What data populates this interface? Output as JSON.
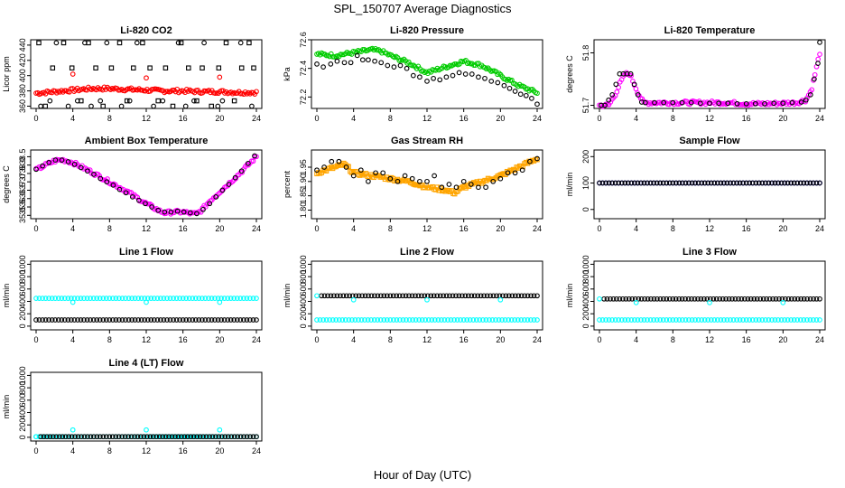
{
  "page": {
    "title": "SPL_150707  Average Diagnostics",
    "xlabel": "Hour of Day (UTC)"
  },
  "colors": {
    "black": "#000000",
    "red": "#ff0000",
    "green": "#00cc00",
    "magenta": "#ff00ff",
    "orange": "#ffa500",
    "blue": "#0000ff",
    "cyan": "#00ffff"
  },
  "chart_data": [
    {
      "id": "co2",
      "type": "scatter",
      "title": "Li-820 CO2",
      "ylabel": "Licor ppm",
      "xlim": [
        0,
        24
      ],
      "xticks": [
        0,
        4,
        8,
        12,
        16,
        20,
        24
      ],
      "ylim": [
        357,
        447
      ],
      "yticks": [
        360,
        380,
        400,
        420,
        440
      ],
      "series": [
        {
          "color": "#000000",
          "marker": "circle",
          "x": [
            0.5,
            1.5,
            2.2,
            3.5,
            4.5,
            5.3,
            6.0,
            7.0,
            7.7,
            9.3,
            10.2,
            11.0,
            12.8,
            13.8,
            15.5,
            16.3,
            17.2,
            18.3,
            19.8,
            20.3,
            22.3,
            23.5
          ],
          "y": [
            360,
            367,
            443,
            360,
            367,
            443,
            360,
            367,
            443,
            360,
            367,
            443,
            360,
            367,
            443,
            360,
            367,
            443,
            360,
            367,
            443,
            360
          ]
        },
        {
          "color": "#000000",
          "marker": "square",
          "x": [
            0.3,
            1.0,
            1.8,
            3.0,
            3.9,
            4.9,
            5.7,
            6.5,
            7.3,
            8.2,
            9.1,
            9.9,
            10.6,
            11.6,
            12.4,
            13.3,
            14.1,
            14.9,
            15.8,
            16.6,
            17.5,
            18.1,
            19.1,
            19.9,
            20.7,
            21.6,
            22.4,
            23.2,
            23.7
          ],
          "y": [
            443,
            360,
            410,
            443,
            410,
            367,
            443,
            410,
            360,
            410,
            443,
            367,
            410,
            443,
            410,
            367,
            410,
            360,
            443,
            410,
            367,
            410,
            360,
            410,
            443,
            367,
            410,
            443,
            410
          ]
        },
        {
          "color": "#ff0000",
          "marker": "circle",
          "cloud": true,
          "x": [
            0,
            2,
            4,
            6,
            8,
            10,
            12,
            14,
            16,
            18,
            20,
            22,
            24
          ],
          "y": [
            377,
            379,
            381,
            383,
            383,
            382,
            381,
            380,
            380,
            379,
            379,
            378,
            378
          ]
        },
        {
          "color": "#ff0000",
          "marker": "circle",
          "x": [
            4.0,
            12.0,
            20.0
          ],
          "y": [
            402,
            397,
            398
          ]
        }
      ]
    },
    {
      "id": "pressure",
      "type": "scatter",
      "title": "Li-820 Pressure",
      "ylabel": "kPa",
      "xlim": [
        0,
        24
      ],
      "xticks": [
        0,
        4,
        8,
        12,
        16,
        20,
        24
      ],
      "ylim": [
        72.12,
        72.6
      ],
      "yticks": [
        72.2,
        72.4,
        72.6
      ],
      "series": [
        {
          "color": "#00cc00",
          "marker": "circle",
          "cloud": true,
          "x": [
            0,
            2,
            4,
            6,
            7,
            8,
            10,
            12,
            14,
            16,
            18,
            20,
            22,
            24
          ],
          "y": [
            72.5,
            72.49,
            72.51,
            72.53,
            72.52,
            72.49,
            72.44,
            72.37,
            72.41,
            72.45,
            72.42,
            72.35,
            72.28,
            72.23
          ]
        },
        {
          "color": "#000000",
          "marker": "circle",
          "x": [
            0,
            0.7,
            1.5,
            2.2,
            3.0,
            3.7,
            4.4,
            5.0,
            5.6,
            6.3,
            7.0,
            7.7,
            8.4,
            9.1,
            9.8,
            10.5,
            11.2,
            12.0,
            12.7,
            13.4,
            14.1,
            14.8,
            15.5,
            16.2,
            16.9,
            17.6,
            18.3,
            19.0,
            19.7,
            20.4,
            21.0,
            21.6,
            22.2,
            22.8,
            23.4,
            24.0
          ],
          "y": [
            72.43,
            72.41,
            72.43,
            72.45,
            72.44,
            72.44,
            72.49,
            72.46,
            72.46,
            72.45,
            72.44,
            72.42,
            72.41,
            72.42,
            72.4,
            72.35,
            72.34,
            72.31,
            72.33,
            72.32,
            72.34,
            72.35,
            72.37,
            72.36,
            72.36,
            72.34,
            72.33,
            72.31,
            72.3,
            72.28,
            72.26,
            72.24,
            72.22,
            72.21,
            72.19,
            72.15
          ]
        }
      ]
    },
    {
      "id": "li820temp",
      "type": "scatter",
      "title": "Li-820 Temperature",
      "ylabel": "degrees C",
      "xlim": [
        0,
        24
      ],
      "xticks": [
        0,
        4,
        8,
        12,
        16,
        20,
        24
      ],
      "ylim": [
        51.694,
        51.825
      ],
      "yticks": [
        51.7,
        51.8
      ],
      "series": [
        {
          "color": "#ff00ff",
          "marker": "circle",
          "cloud": true,
          "x": [
            0,
            1.0,
            1.7,
            2.2,
            2.8,
            3.3,
            3.8,
            4.3,
            4.8,
            6,
            10,
            14,
            16,
            18,
            20,
            21.5,
            22.5,
            23.1,
            23.5,
            24
          ],
          "y": [
            51.7,
            51.7,
            51.72,
            51.74,
            51.76,
            51.76,
            51.74,
            51.72,
            51.705,
            51.705,
            51.705,
            51.705,
            51.703,
            51.703,
            51.704,
            51.705,
            51.71,
            51.73,
            51.76,
            51.8
          ]
        },
        {
          "color": "#000000",
          "marker": "circle",
          "x": [
            0.2,
            0.6,
            1.0,
            1.4,
            1.8,
            2.2,
            2.6,
            3.0,
            3.4,
            3.8,
            4.2,
            4.6,
            5,
            6,
            7,
            8,
            9,
            10,
            11,
            12,
            13,
            14,
            15,
            16,
            17,
            18,
            19,
            20,
            21,
            22,
            22.5,
            23,
            23.4,
            23.8,
            24
          ],
          "y": [
            51.7,
            51.7,
            51.71,
            51.72,
            51.74,
            51.76,
            51.76,
            51.76,
            51.76,
            51.74,
            51.72,
            51.706,
            51.705,
            51.705,
            51.705,
            51.705,
            51.705,
            51.705,
            51.704,
            51.704,
            51.704,
            51.704,
            51.703,
            51.703,
            51.703,
            51.703,
            51.704,
            51.704,
            51.705,
            51.706,
            51.71,
            51.72,
            51.75,
            51.78,
            51.82
          ]
        }
      ]
    },
    {
      "id": "boxtemp",
      "type": "scatter",
      "title": "Ambient Box Temperature",
      "ylabel": "degrees C",
      "xlim": [
        0,
        24
      ],
      "xticks": [
        0,
        4,
        8,
        12,
        16,
        20,
        24
      ],
      "ylim": [
        34.8,
        38.9
      ],
      "yticks": [
        35.0,
        35.5,
        36.0,
        36.5,
        37.0,
        37.5,
        38.0,
        38.5
      ],
      "series": [
        {
          "color": "#ff00ff",
          "marker": "circle",
          "cloud": true,
          "x": [
            0,
            1,
            2,
            2.5,
            3,
            4,
            6,
            8,
            10,
            12,
            13.5,
            14,
            15,
            16,
            17,
            17.5,
            18,
            19,
            20,
            22,
            24
          ],
          "y": [
            37.7,
            38.0,
            38.25,
            38.3,
            38.3,
            38.15,
            37.6,
            37.0,
            36.4,
            35.7,
            35.25,
            35.15,
            35.2,
            35.2,
            35.1,
            35.1,
            35.3,
            35.9,
            36.4,
            37.4,
            38.5
          ]
        },
        {
          "color": "#000000",
          "marker": "circle",
          "x": [
            0,
            0.7,
            1.4,
            2.1,
            2.8,
            3.5,
            4.2,
            4.9,
            5.6,
            6.3,
            7.0,
            7.7,
            8.4,
            9.1,
            9.8,
            10.5,
            11.2,
            11.9,
            12.6,
            13.3,
            14.0,
            14.7,
            15.4,
            16.1,
            16.8,
            17.5,
            18.2,
            18.9,
            19.6,
            20.3,
            21.0,
            21.7,
            22.4,
            23.1,
            23.8
          ],
          "y": [
            37.75,
            37.95,
            38.15,
            38.3,
            38.3,
            38.2,
            38.05,
            37.85,
            37.65,
            37.45,
            37.2,
            37.0,
            36.8,
            36.55,
            36.35,
            36.1,
            35.9,
            35.7,
            35.5,
            35.3,
            35.2,
            35.2,
            35.25,
            35.2,
            35.15,
            35.1,
            35.35,
            35.7,
            36.1,
            36.5,
            36.85,
            37.25,
            37.65,
            38.1,
            38.55
          ]
        }
      ]
    },
    {
      "id": "rh",
      "type": "scatter",
      "title": "Gas Stream RH",
      "ylabel": "percent",
      "xlim": [
        0,
        24
      ],
      "xticks": [
        0,
        4,
        8,
        12,
        16,
        20,
        24
      ],
      "ylim": [
        1.77,
        2.01
      ],
      "yticks": [
        1.8,
        1.85,
        1.9,
        1.95
      ],
      "series": [
        {
          "color": "#ffa500",
          "marker": "square",
          "cloud": true,
          "x": [
            0,
            2,
            3,
            4,
            6,
            8,
            10,
            12,
            14,
            15,
            16,
            18,
            20,
            22,
            24
          ],
          "y": [
            1.93,
            1.95,
            1.96,
            1.93,
            1.92,
            1.91,
            1.9,
            1.88,
            1.87,
            1.86,
            1.88,
            1.9,
            1.92,
            1.95,
            1.98
          ]
        },
        {
          "color": "#000000",
          "marker": "circle",
          "x": [
            0,
            0.8,
            1.6,
            2.4,
            3.2,
            4.0,
            4.8,
            5.6,
            6.4,
            7.2,
            8.0,
            8.8,
            9.6,
            10.4,
            11.2,
            12.0,
            12.8,
            13.6,
            14.4,
            15.2,
            16.0,
            16.8,
            17.6,
            18.4,
            19.2,
            20.0,
            20.8,
            21.6,
            22.4,
            23.2,
            24.0
          ],
          "y": [
            1.94,
            1.95,
            1.97,
            1.97,
            1.95,
            1.92,
            1.94,
            1.9,
            1.93,
            1.93,
            1.91,
            1.9,
            1.92,
            1.91,
            1.9,
            1.9,
            1.92,
            1.88,
            1.89,
            1.88,
            1.9,
            1.89,
            1.88,
            1.88,
            1.9,
            1.91,
            1.93,
            1.93,
            1.94,
            1.97,
            1.98
          ]
        }
      ]
    },
    {
      "id": "sampleflow",
      "type": "scatter",
      "title": "Sample Flow",
      "ylabel": "ml/min",
      "xlim": [
        0,
        24
      ],
      "xticks": [
        0,
        4,
        8,
        12,
        16,
        20,
        24
      ],
      "ylim": [
        -35,
        225
      ],
      "yticks": [
        0,
        100,
        200
      ],
      "series": [
        {
          "color": "#0000ff",
          "marker": "circle",
          "dense": true,
          "x": [
            0,
            24
          ],
          "y": [
            100,
            100
          ]
        },
        {
          "color": "#000000",
          "marker": "circle",
          "dense": true,
          "x": [
            0,
            24
          ],
          "y": [
            100,
            100
          ]
        }
      ]
    },
    {
      "id": "line1",
      "type": "scatter",
      "title": "Line 1 Flow",
      "ylabel": "ml/min",
      "xlim": [
        0,
        24
      ],
      "xticks": [
        0,
        4,
        8,
        12,
        16,
        20,
        24
      ],
      "ylim": [
        -60,
        1050
      ],
      "yticks": [
        0,
        200,
        400,
        600,
        800,
        1000
      ],
      "series": [
        {
          "color": "#00ffff",
          "marker": "circle",
          "dense": true,
          "x": [
            0,
            24
          ],
          "y": [
            450,
            450
          ]
        },
        {
          "color": "#000000",
          "marker": "circle",
          "dense": true,
          "x": [
            0,
            24
          ],
          "y": [
            100,
            100
          ]
        },
        {
          "color": "#00ffff",
          "marker": "circle",
          "x": [
            4,
            12,
            20
          ],
          "y": [
            385,
            385,
            385
          ]
        }
      ]
    },
    {
      "id": "line2",
      "type": "scatter",
      "title": "Line 2 Flow",
      "ylabel": "ml/min",
      "xlim": [
        0,
        24
      ],
      "xticks": [
        0,
        4,
        8,
        12,
        16,
        20,
        24
      ],
      "ylim": [
        -60,
        1050
      ],
      "yticks": [
        0,
        200,
        400,
        600,
        800,
        1000
      ],
      "series": [
        {
          "color": "#00ffff",
          "marker": "circle",
          "dense": true,
          "x": [
            0,
            24
          ],
          "y": [
            100,
            100
          ]
        },
        {
          "color": "#000000",
          "marker": "circle",
          "dense": true,
          "x": [
            0.5,
            24
          ],
          "y": [
            490,
            490
          ]
        },
        {
          "color": "#00ffff",
          "marker": "circle",
          "x": [
            0,
            4,
            12,
            20
          ],
          "y": [
            490,
            425,
            425,
            425
          ]
        }
      ]
    },
    {
      "id": "line3",
      "type": "scatter",
      "title": "Line 3 Flow",
      "ylabel": "ml/min",
      "xlim": [
        0,
        24
      ],
      "xticks": [
        0,
        4,
        8,
        12,
        16,
        20,
        24
      ],
      "ylim": [
        -60,
        1050
      ],
      "yticks": [
        0,
        200,
        400,
        600,
        800,
        1000
      ],
      "series": [
        {
          "color": "#00ffff",
          "marker": "circle",
          "dense": true,
          "x": [
            0,
            24
          ],
          "y": [
            100,
            100
          ]
        },
        {
          "color": "#000000",
          "marker": "circle",
          "dense": true,
          "x": [
            0.5,
            24
          ],
          "y": [
            440,
            440
          ]
        },
        {
          "color": "#00ffff",
          "marker": "circle",
          "x": [
            0,
            4,
            12,
            20
          ],
          "y": [
            440,
            380,
            380,
            380
          ]
        }
      ]
    },
    {
      "id": "line4",
      "type": "scatter",
      "title": "Line 4 (LT) Flow",
      "ylabel": "ml/min",
      "xlim": [
        0,
        24
      ],
      "xticks": [
        0,
        4,
        8,
        12,
        16,
        20,
        24
      ],
      "ylim": [
        -60,
        1050
      ],
      "yticks": [
        0,
        200,
        400,
        600,
        800,
        1000
      ],
      "series": [
        {
          "color": "#00ffff",
          "marker": "circle",
          "dense": true,
          "x": [
            0,
            24
          ],
          "y": [
            10,
            10
          ]
        },
        {
          "color": "#000000",
          "marker": "circle",
          "dense": true,
          "x": [
            0.5,
            24
          ],
          "y": [
            10,
            10
          ]
        },
        {
          "color": "#00ffff",
          "marker": "circle",
          "x": [
            0,
            4,
            12,
            20
          ],
          "y": [
            10,
            120,
            120,
            120
          ]
        }
      ]
    }
  ]
}
